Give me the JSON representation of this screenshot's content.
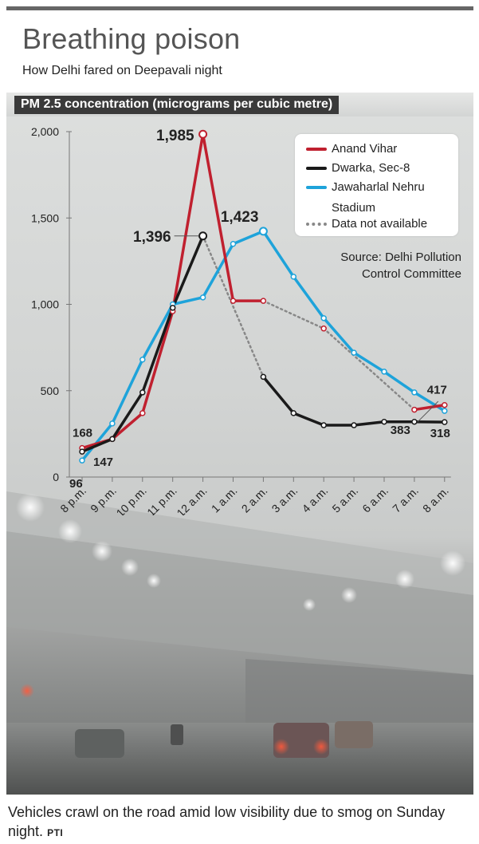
{
  "title": "Breathing poison",
  "subtitle": "How Delhi fared on Deepavali night",
  "band_label": "PM 2.5 concentration (micrograms per cubic metre)",
  "source": [
    "Source: Delhi Pollution",
    "Control Committee"
  ],
  "caption": "Vehicles crawl on the road amid low visibility due to smog on Sunday night.",
  "credit": "PTI",
  "colors": {
    "anand": "#c0202f",
    "dwarka": "#1a1a1a",
    "jnu": "#1ea3da",
    "na": "#888888"
  },
  "legend": {
    "anand": "Anand Vihar",
    "dwarka": "Dwarka, Sec-8",
    "jnu_line1": "Jawaharlal Nehru",
    "jnu_line2": "Stadium",
    "na": "Data not available"
  },
  "chart_data": {
    "type": "line",
    "categories": [
      "8 p.m.",
      "9 p.m.",
      "10 p.m.",
      "11 p.m.",
      "12 a.m.",
      "1 a.m.",
      "2 a.m.",
      "3 a.m.",
      "4 a.m.",
      "5 a.m.",
      "6 a.m.",
      "7 a.m.",
      "8 a.m."
    ],
    "ylim": [
      0,
      2000
    ],
    "yticks": [
      0,
      500,
      1000,
      1500,
      2000
    ],
    "ytick_labels": [
      "0",
      "500",
      "1,000",
      "1,500",
      "2,000"
    ],
    "series": [
      {
        "name": "Anand Vihar",
        "values": [
          168,
          220,
          370,
          960,
          1985,
          1020,
          1020,
          null,
          860,
          null,
          null,
          390,
          417
        ]
      },
      {
        "name": "Dwarka, Sec-8",
        "values": [
          147,
          220,
          490,
          980,
          1396,
          null,
          580,
          370,
          300,
          300,
          320,
          320,
          318
        ]
      },
      {
        "name": "Jawaharlal Nehru Stadium",
        "values": [
          96,
          310,
          680,
          1000,
          1040,
          1350,
          1423,
          1160,
          920,
          720,
          610,
          490,
          383
        ]
      }
    ],
    "annotations": [
      {
        "text": "1,985",
        "x": "12 a.m.",
        "y": 1985
      },
      {
        "text": "1,396",
        "x": "12 a.m.",
        "y": 1396
      },
      {
        "text": "1,423",
        "x": "2 a.m.",
        "y": 1423
      },
      {
        "text": "168",
        "x": "8 p.m.",
        "y": 168
      },
      {
        "text": "147",
        "x": "8 p.m.",
        "y": 147
      },
      {
        "text": "96",
        "x": "8 p.m.",
        "y": 96
      },
      {
        "text": "417",
        "x": "8 a.m.",
        "y": 417
      },
      {
        "text": "383",
        "x": "8 a.m.",
        "y": 383
      },
      {
        "text": "318",
        "x": "8 a.m.",
        "y": 318
      }
    ],
    "grid": false,
    "legend_position": "top-right"
  }
}
